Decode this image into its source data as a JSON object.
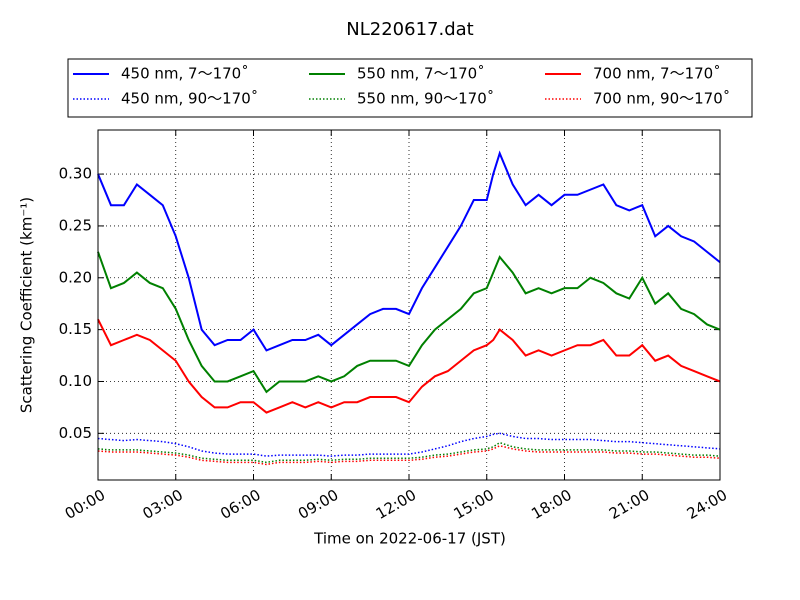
{
  "chart_data": {
    "type": "line",
    "title": "NL220617.dat",
    "x_label": "Time on 2022-06-17 (JST)",
    "y_label": "Scattering Coefficient (km⁻¹)",
    "x": [
      0,
      0.5,
      1,
      1.5,
      2,
      2.5,
      3,
      3.5,
      4,
      4.5,
      5,
      5.5,
      6,
      6.5,
      7,
      7.5,
      8,
      8.5,
      9,
      9.5,
      10,
      10.5,
      11,
      11.5,
      12,
      12.5,
      13,
      13.5,
      14,
      14.5,
      15,
      15.25,
      15.5,
      16,
      16.5,
      17,
      17.5,
      18,
      18.5,
      19,
      19.5,
      20,
      20.5,
      21,
      21.5,
      22,
      22.5,
      23,
      23.5,
      24
    ],
    "xlim": [
      0,
      24
    ],
    "xticks": [
      {
        "value": 0,
        "label": "00:00"
      },
      {
        "value": 3,
        "label": "03:00"
      },
      {
        "value": 6,
        "label": "06:00"
      },
      {
        "value": 9,
        "label": "09:00"
      },
      {
        "value": 12,
        "label": "12:00"
      },
      {
        "value": 15,
        "label": "15:00"
      },
      {
        "value": 18,
        "label": "18:00"
      },
      {
        "value": 21,
        "label": "21:00"
      },
      {
        "value": 24,
        "label": "24:00"
      }
    ],
    "ylim": [
      0.005,
      0.3425
    ],
    "yticks": [
      0.05,
      {
        "value": 0.1,
        "label": "0.10"
      },
      0.15,
      {
        "value": 0.2,
        "label": "0.20"
      },
      0.25,
      {
        "value": 0.3,
        "label": "0.30"
      }
    ],
    "grid": true,
    "legend_position": "top",
    "series": [
      {
        "name": "450 nm, 7～170˚",
        "color": "#0000ff",
        "linestyle": "solid",
        "values": [
          0.3,
          0.27,
          0.27,
          0.29,
          0.28,
          0.27,
          0.24,
          0.2,
          0.15,
          0.135,
          0.14,
          0.14,
          0.15,
          0.13,
          0.135,
          0.14,
          0.14,
          0.145,
          0.135,
          0.145,
          0.155,
          0.165,
          0.17,
          0.17,
          0.165,
          0.19,
          0.21,
          0.23,
          0.25,
          0.275,
          0.275,
          0.3,
          0.32,
          0.29,
          0.27,
          0.28,
          0.27,
          0.28,
          0.28,
          0.285,
          0.29,
          0.27,
          0.265,
          0.27,
          0.24,
          0.25,
          0.24,
          0.235,
          0.225,
          0.215
        ]
      },
      {
        "name": "550 nm, 7～170˚",
        "color": "#008000",
        "linestyle": "solid",
        "values": [
          0.225,
          0.19,
          0.195,
          0.205,
          0.195,
          0.19,
          0.17,
          0.14,
          0.115,
          0.1,
          0.1,
          0.105,
          0.11,
          0.09,
          0.1,
          0.1,
          0.1,
          0.105,
          0.1,
          0.105,
          0.115,
          0.12,
          0.12,
          0.12,
          0.115,
          0.135,
          0.15,
          0.16,
          0.17,
          0.185,
          0.19,
          0.205,
          0.22,
          0.205,
          0.185,
          0.19,
          0.185,
          0.19,
          0.19,
          0.2,
          0.195,
          0.185,
          0.18,
          0.2,
          0.175,
          0.185,
          0.17,
          0.165,
          0.155,
          0.15
        ]
      },
      {
        "name": "700 nm, 7～170˚",
        "color": "#ff0000",
        "linestyle": "solid",
        "values": [
          0.16,
          0.135,
          0.14,
          0.145,
          0.14,
          0.13,
          0.12,
          0.1,
          0.085,
          0.075,
          0.075,
          0.08,
          0.08,
          0.07,
          0.075,
          0.08,
          0.075,
          0.08,
          0.075,
          0.08,
          0.08,
          0.085,
          0.085,
          0.085,
          0.08,
          0.095,
          0.105,
          0.11,
          0.12,
          0.13,
          0.135,
          0.14,
          0.15,
          0.14,
          0.125,
          0.13,
          0.125,
          0.13,
          0.135,
          0.135,
          0.14,
          0.125,
          0.125,
          0.135,
          0.12,
          0.125,
          0.115,
          0.11,
          0.105,
          0.1
        ]
      },
      {
        "name": "450 nm, 90～170˚",
        "color": "#0000ff",
        "linestyle": "dotted",
        "values": [
          0.045,
          0.044,
          0.043,
          0.044,
          0.043,
          0.042,
          0.04,
          0.037,
          0.033,
          0.031,
          0.03,
          0.03,
          0.03,
          0.028,
          0.029,
          0.029,
          0.029,
          0.029,
          0.028,
          0.029,
          0.029,
          0.03,
          0.03,
          0.03,
          0.03,
          0.032,
          0.035,
          0.038,
          0.042,
          0.045,
          0.047,
          0.049,
          0.05,
          0.047,
          0.045,
          0.045,
          0.044,
          0.044,
          0.044,
          0.044,
          0.043,
          0.042,
          0.042,
          0.041,
          0.04,
          0.039,
          0.038,
          0.037,
          0.036,
          0.035
        ]
      },
      {
        "name": "550 nm, 90～170˚",
        "color": "#008000",
        "linestyle": "dotted",
        "values": [
          0.035,
          0.034,
          0.034,
          0.034,
          0.033,
          0.032,
          0.031,
          0.029,
          0.026,
          0.025,
          0.024,
          0.024,
          0.024,
          0.022,
          0.024,
          0.024,
          0.024,
          0.025,
          0.024,
          0.025,
          0.025,
          0.026,
          0.026,
          0.026,
          0.026,
          0.027,
          0.029,
          0.03,
          0.032,
          0.034,
          0.035,
          0.037,
          0.041,
          0.037,
          0.035,
          0.034,
          0.034,
          0.034,
          0.034,
          0.034,
          0.034,
          0.033,
          0.033,
          0.032,
          0.032,
          0.031,
          0.03,
          0.029,
          0.029,
          0.028
        ]
      },
      {
        "name": "700 nm, 90～170˚",
        "color": "#ff0000",
        "linestyle": "dotted",
        "values": [
          0.033,
          0.032,
          0.032,
          0.032,
          0.031,
          0.03,
          0.029,
          0.027,
          0.024,
          0.023,
          0.022,
          0.022,
          0.022,
          0.02,
          0.022,
          0.022,
          0.022,
          0.023,
          0.022,
          0.023,
          0.023,
          0.024,
          0.024,
          0.024,
          0.024,
          0.025,
          0.027,
          0.028,
          0.03,
          0.032,
          0.033,
          0.035,
          0.038,
          0.035,
          0.033,
          0.032,
          0.032,
          0.032,
          0.032,
          0.032,
          0.032,
          0.031,
          0.031,
          0.03,
          0.03,
          0.029,
          0.028,
          0.027,
          0.027,
          0.026
        ]
      }
    ]
  }
}
